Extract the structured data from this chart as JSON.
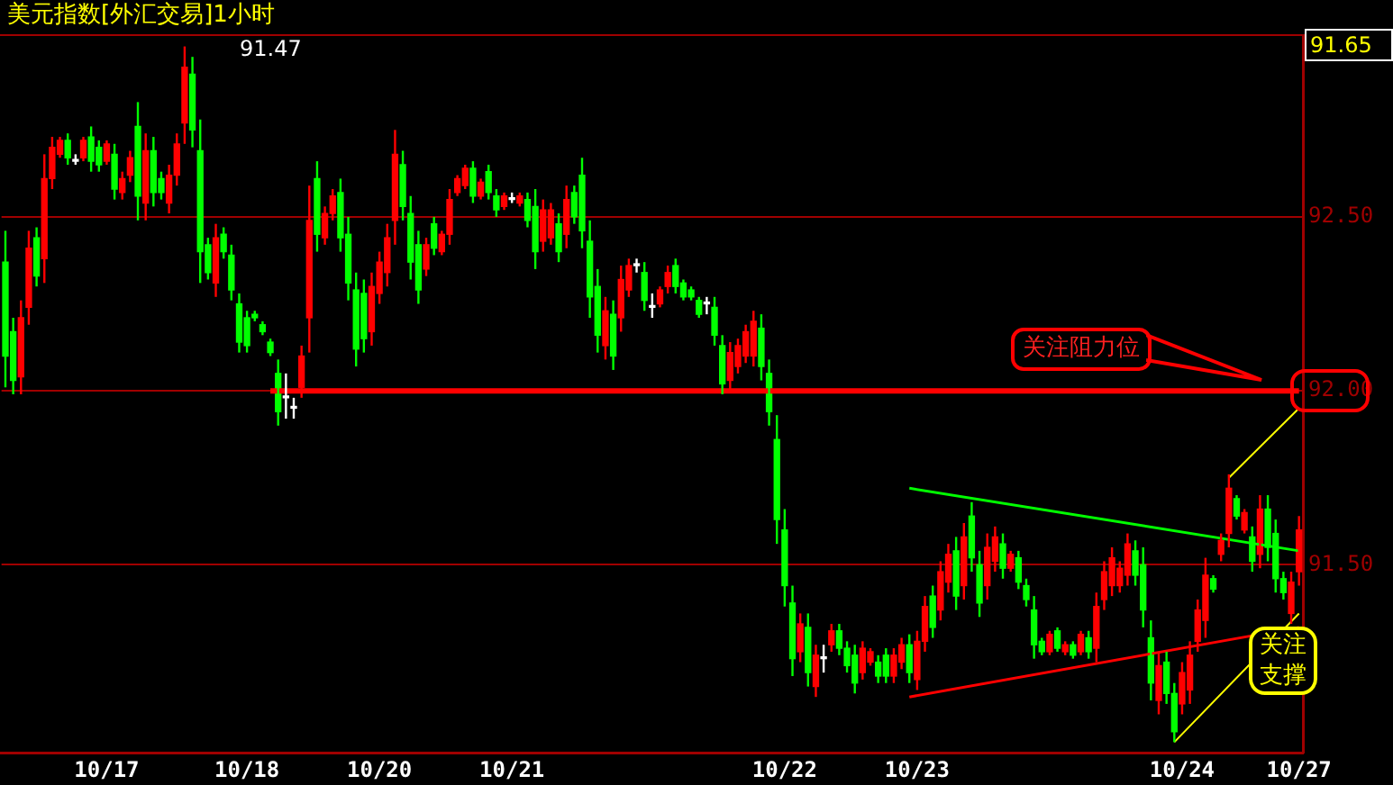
{
  "chart_data": {
    "type": "candlestick",
    "title": "美元指数[外汇交易]1小时",
    "categories": [
      null,
      null,
      null,
      null,
      null,
      null,
      null,
      null,
      null,
      null,
      null,
      null,
      null,
      "10/17",
      null,
      null,
      null,
      null,
      null,
      null,
      null,
      null,
      null,
      null,
      null,
      null,
      null,
      null,
      null,
      null,
      null,
      "10/18",
      null,
      null,
      null,
      null,
      null,
      null,
      null,
      null,
      null,
      null,
      null,
      null,
      null,
      null,
      null,
      null,
      "10/20",
      null,
      null,
      null,
      null,
      null,
      null,
      null,
      null,
      null,
      null,
      null,
      null,
      null,
      null,
      null,
      null,
      "10/21",
      null,
      null,
      null,
      null,
      null,
      null,
      null,
      null,
      null,
      null,
      null,
      null,
      null,
      null,
      null,
      null,
      null,
      null,
      null,
      null,
      null,
      null,
      null,
      null,
      null,
      null,
      null,
      null,
      null,
      null,
      null,
      null,
      null,
      null,
      "10/22",
      null,
      null,
      null,
      null,
      null,
      null,
      null,
      null,
      null,
      null,
      null,
      null,
      null,
      null,
      null,
      null,
      "10/23",
      null,
      null,
      null,
      null,
      null,
      null,
      null,
      null,
      null,
      null,
      null,
      null,
      null,
      null,
      null,
      null,
      null,
      null,
      null,
      null,
      null,
      null,
      null,
      null,
      null,
      null,
      null,
      null,
      null,
      null,
      null,
      null,
      null,
      "10/24",
      null,
      null,
      null,
      null,
      null,
      null,
      null,
      null,
      null,
      null,
      null,
      null,
      null,
      null,
      "10/27"
    ],
    "ohlc": [
      [
        92.37,
        92.46,
        92.01,
        92.1
      ],
      [
        92.17,
        92.21,
        91.99,
        92.03
      ],
      [
        92.04,
        92.26,
        91.99,
        92.21
      ],
      [
        92.24,
        92.46,
        92.19,
        92.41
      ],
      [
        92.44,
        92.47,
        92.3,
        92.33
      ],
      [
        92.38,
        92.68,
        92.31,
        92.61
      ],
      [
        92.61,
        92.73,
        92.58,
        92.7
      ],
      [
        92.68,
        92.73,
        92.67,
        92.72
      ],
      [
        92.72,
        92.74,
        92.65,
        92.67
      ],
      [
        92.66,
        92.68,
        92.65,
        92.66
      ],
      [
        92.67,
        92.73,
        92.66,
        92.72
      ],
      [
        92.73,
        92.76,
        92.63,
        92.66
      ],
      [
        92.7,
        92.72,
        92.63,
        92.65
      ],
      [
        92.66,
        92.72,
        92.65,
        92.71
      ],
      [
        92.68,
        92.71,
        92.55,
        92.58
      ],
      [
        92.57,
        92.63,
        92.55,
        92.61
      ],
      [
        92.62,
        92.69,
        92.6,
        92.67
      ],
      [
        92.76,
        92.83,
        92.49,
        92.56
      ],
      [
        92.54,
        92.74,
        92.49,
        92.69
      ],
      [
        92.69,
        92.73,
        92.53,
        92.57
      ],
      [
        92.61,
        92.63,
        92.55,
        92.57
      ],
      [
        92.54,
        92.65,
        92.51,
        92.62
      ],
      [
        92.62,
        92.74,
        92.59,
        92.71
      ],
      [
        92.77,
        92.99,
        92.71,
        92.93
      ],
      [
        92.91,
        92.96,
        92.7,
        92.75
      ],
      [
        92.69,
        92.78,
        92.31,
        92.4
      ],
      [
        92.42,
        92.44,
        92.32,
        92.34
      ],
      [
        92.31,
        92.48,
        92.27,
        92.44
      ],
      [
        92.45,
        92.47,
        92.38,
        92.4
      ],
      [
        92.39,
        92.42,
        92.26,
        92.29
      ],
      [
        92.25,
        92.28,
        92.11,
        92.14
      ],
      [
        92.21,
        92.23,
        92.11,
        92.13
      ],
      [
        92.22,
        92.23,
        92.2,
        92.21
      ],
      [
        92.19,
        92.2,
        92.16,
        92.17
      ],
      [
        92.14,
        92.15,
        92.1,
        92.11
      ],
      [
        92.05,
        92.09,
        91.9,
        91.94
      ],
      [
        91.98,
        92.05,
        91.92,
        91.98
      ],
      [
        91.95,
        91.98,
        91.92,
        91.95
      ],
      [
        92.01,
        92.13,
        91.98,
        92.1
      ],
      [
        92.21,
        92.59,
        92.11,
        92.49
      ],
      [
        92.61,
        92.66,
        92.4,
        92.45
      ],
      [
        92.44,
        92.53,
        92.42,
        92.51
      ],
      [
        92.51,
        92.58,
        92.49,
        92.56
      ],
      [
        92.57,
        92.61,
        92.4,
        92.44
      ],
      [
        92.45,
        92.5,
        92.26,
        92.31
      ],
      [
        92.29,
        92.34,
        92.07,
        92.12
      ],
      [
        92.28,
        92.32,
        92.11,
        92.15
      ],
      [
        92.17,
        92.34,
        92.13,
        92.3
      ],
      [
        92.28,
        92.4,
        92.25,
        92.37
      ],
      [
        92.34,
        92.48,
        92.3,
        92.44
      ],
      [
        92.49,
        92.75,
        92.42,
        92.68
      ],
      [
        92.65,
        92.69,
        92.49,
        92.53
      ],
      [
        92.51,
        92.56,
        92.32,
        92.37
      ],
      [
        92.42,
        92.46,
        92.25,
        92.29
      ],
      [
        92.35,
        92.44,
        92.33,
        92.42
      ],
      [
        92.48,
        92.5,
        92.39,
        92.41
      ],
      [
        92.4,
        92.46,
        92.39,
        92.45
      ],
      [
        92.45,
        92.58,
        92.42,
        92.55
      ],
      [
        92.57,
        92.62,
        92.56,
        92.61
      ],
      [
        92.59,
        92.65,
        92.58,
        92.64
      ],
      [
        92.64,
        92.66,
        92.54,
        92.56
      ],
      [
        92.56,
        92.61,
        92.55,
        92.6
      ],
      [
        92.63,
        92.65,
        92.55,
        92.57
      ],
      [
        92.56,
        92.58,
        92.5,
        92.52
      ],
      [
        92.53,
        92.57,
        92.52,
        92.56
      ],
      [
        92.55,
        92.57,
        92.54,
        92.55
      ],
      [
        92.54,
        92.57,
        92.53,
        92.56
      ],
      [
        92.55,
        92.57,
        92.47,
        92.49
      ],
      [
        92.53,
        92.58,
        92.35,
        92.4
      ],
      [
        92.43,
        92.55,
        92.4,
        92.52
      ],
      [
        92.44,
        92.54,
        92.42,
        92.52
      ],
      [
        92.48,
        92.51,
        92.37,
        92.4
      ],
      [
        92.45,
        92.59,
        92.41,
        92.55
      ],
      [
        92.57,
        92.59,
        92.48,
        92.5
      ],
      [
        92.62,
        92.67,
        92.41,
        92.46
      ],
      [
        92.43,
        92.49,
        92.21,
        92.27
      ],
      [
        92.3,
        92.35,
        92.11,
        92.16
      ],
      [
        92.13,
        92.27,
        92.09,
        92.23
      ],
      [
        92.22,
        92.26,
        92.06,
        92.1
      ],
      [
        92.21,
        92.36,
        92.17,
        92.32
      ],
      [
        92.29,
        92.38,
        92.27,
        92.36
      ],
      [
        92.36,
        92.38,
        92.34,
        92.36
      ],
      [
        92.34,
        92.37,
        92.23,
        92.26
      ],
      [
        92.24,
        92.28,
        92.21,
        92.24
      ],
      [
        92.25,
        92.3,
        92.24,
        92.29
      ],
      [
        92.3,
        92.36,
        92.28,
        92.34
      ],
      [
        92.36,
        92.38,
        92.28,
        92.3
      ],
      [
        92.31,
        92.32,
        92.26,
        92.27
      ],
      [
        92.29,
        92.3,
        92.26,
        92.27
      ],
      [
        92.26,
        92.27,
        92.21,
        92.22
      ],
      [
        92.25,
        92.27,
        92.22,
        92.25
      ],
      [
        92.24,
        92.27,
        92.13,
        92.16
      ],
      [
        92.13,
        92.16,
        91.99,
        92.02
      ],
      [
        92.03,
        92.14,
        92.0,
        92.11
      ],
      [
        92.07,
        92.15,
        92.05,
        92.13
      ],
      [
        92.1,
        92.19,
        92.08,
        92.17
      ],
      [
        92.1,
        92.23,
        92.07,
        92.2
      ],
      [
        92.18,
        92.22,
        92.03,
        92.07
      ],
      [
        92.05,
        92.09,
        91.9,
        91.94
      ],
      [
        91.86,
        91.93,
        91.56,
        91.63
      ],
      [
        91.6,
        91.66,
        91.38,
        91.44
      ],
      [
        91.39,
        91.44,
        91.18,
        91.23
      ],
      [
        91.25,
        91.36,
        91.22,
        91.33
      ],
      [
        91.32,
        91.36,
        91.15,
        91.19
      ],
      [
        91.15,
        91.27,
        91.12,
        91.24
      ],
      [
        91.23,
        91.27,
        91.19,
        91.23
      ],
      [
        91.27,
        91.33,
        91.25,
        91.31
      ],
      [
        91.31,
        91.33,
        91.24,
        91.26
      ],
      [
        91.26,
        91.28,
        91.19,
        91.21
      ],
      [
        91.24,
        91.27,
        91.13,
        91.16
      ],
      [
        91.19,
        91.28,
        91.17,
        91.26
      ],
      [
        91.22,
        91.26,
        91.21,
        91.25
      ],
      [
        91.22,
        91.24,
        91.16,
        91.18
      ],
      [
        91.24,
        91.26,
        91.16,
        91.18
      ],
      [
        91.18,
        91.26,
        91.16,
        91.24
      ],
      [
        91.22,
        91.29,
        91.2,
        91.27
      ],
      [
        91.27,
        91.3,
        91.16,
        91.19
      ],
      [
        91.17,
        91.31,
        91.14,
        91.28
      ],
      [
        91.28,
        91.41,
        91.25,
        91.38
      ],
      [
        91.41,
        91.44,
        91.29,
        91.32
      ],
      [
        91.37,
        91.51,
        91.34,
        91.48
      ],
      [
        91.45,
        91.56,
        91.42,
        91.53
      ],
      [
        91.54,
        91.58,
        91.37,
        91.41
      ],
      [
        91.44,
        91.62,
        91.4,
        91.58
      ],
      [
        91.64,
        91.68,
        91.48,
        91.52
      ],
      [
        91.5,
        91.54,
        91.35,
        91.39
      ],
      [
        91.44,
        91.59,
        91.4,
        91.55
      ],
      [
        91.51,
        91.61,
        91.48,
        91.58
      ],
      [
        91.56,
        91.59,
        91.46,
        91.49
      ],
      [
        91.49,
        91.54,
        91.48,
        91.53
      ],
      [
        91.52,
        91.54,
        91.43,
        91.45
      ],
      [
        91.44,
        91.46,
        91.38,
        91.4
      ],
      [
        91.37,
        91.41,
        91.23,
        91.27
      ],
      [
        91.28,
        91.29,
        91.24,
        91.25
      ],
      [
        91.25,
        91.31,
        91.24,
        91.3
      ],
      [
        91.31,
        91.32,
        91.25,
        91.26
      ],
      [
        91.25,
        91.28,
        91.24,
        91.27
      ],
      [
        91.27,
        91.28,
        91.23,
        91.24
      ],
      [
        91.25,
        91.31,
        91.24,
        91.3
      ],
      [
        91.29,
        91.31,
        91.23,
        91.25
      ],
      [
        91.26,
        91.42,
        91.22,
        91.38
      ],
      [
        91.4,
        91.51,
        91.37,
        91.48
      ],
      [
        91.44,
        91.55,
        91.41,
        91.52
      ],
      [
        91.44,
        91.51,
        91.42,
        91.49
      ],
      [
        91.47,
        91.59,
        91.44,
        91.56
      ],
      [
        91.54,
        91.57,
        91.44,
        91.47
      ],
      [
        91.5,
        91.55,
        91.32,
        91.37
      ],
      [
        91.29,
        91.34,
        91.11,
        91.16
      ],
      [
        91.11,
        91.25,
        91.07,
        91.21
      ],
      [
        91.22,
        91.25,
        91.1,
        91.13
      ],
      [
        91.13,
        91.16,
        90.99,
        91.02
      ],
      [
        91.1,
        91.22,
        91.07,
        91.19
      ],
      [
        91.14,
        91.28,
        91.1,
        91.24
      ],
      [
        91.28,
        91.4,
        91.25,
        91.37
      ],
      [
        91.34,
        91.52,
        91.29,
        91.47
      ],
      [
        91.46,
        91.47,
        91.42,
        91.43
      ],
      [
        91.53,
        91.59,
        91.51,
        91.57
      ],
      [
        91.59,
        91.76,
        91.55,
        91.72
      ],
      [
        91.69,
        91.7,
        91.63,
        91.64
      ],
      [
        91.6,
        91.66,
        91.59,
        91.65
      ],
      [
        91.58,
        91.61,
        91.48,
        91.51
      ],
      [
        91.53,
        91.7,
        91.49,
        91.66
      ],
      [
        91.66,
        91.7,
        91.51,
        91.55
      ],
      [
        91.59,
        91.63,
        91.42,
        91.46
      ],
      [
        91.46,
        91.48,
        91.4,
        91.42
      ],
      [
        91.36,
        91.48,
        91.33,
        91.45
      ],
      [
        91.48,
        91.64,
        91.44,
        91.6
      ]
    ],
    "colors": [
      "#00ff00",
      "#00ff00",
      "#ff0000",
      "#ff0000",
      "#00ff00",
      "#ff0000",
      "#ff0000",
      "#ff0000",
      "#00ff00",
      "#ffffff",
      "#ff0000",
      "#00ff00",
      "#00ff00",
      "#ff0000",
      "#00ff00",
      "#ff0000",
      "#ff0000",
      "#00ff00",
      "#ff0000",
      "#00ff00",
      "#00ff00",
      "#ff0000",
      "#ff0000",
      "#ff0000",
      "#00ff00",
      "#00ff00",
      "#00ff00",
      "#ff0000",
      "#00ff00",
      "#00ff00",
      "#00ff00",
      "#00ff00",
      "#00ff00",
      "#00ff00",
      "#00ff00",
      "#00ff00",
      "#ffffff",
      "#ffffff",
      "#ff0000",
      "#ff0000",
      "#00ff00",
      "#ff0000",
      "#ff0000",
      "#00ff00",
      "#00ff00",
      "#00ff00",
      "#00ff00",
      "#ff0000",
      "#ff0000",
      "#ff0000",
      "#ff0000",
      "#00ff00",
      "#00ff00",
      "#00ff00",
      "#ff0000",
      "#00ff00",
      "#ff0000",
      "#ff0000",
      "#ff0000",
      "#ff0000",
      "#00ff00",
      "#ff0000",
      "#00ff00",
      "#00ff00",
      "#ff0000",
      "#ffffff",
      "#ff0000",
      "#00ff00",
      "#00ff00",
      "#ff0000",
      "#ff0000",
      "#00ff00",
      "#ff0000",
      "#00ff00",
      "#00ff00",
      "#00ff00",
      "#00ff00",
      "#ff0000",
      "#00ff00",
      "#ff0000",
      "#ff0000",
      "#ffffff",
      "#00ff00",
      "#ffffff",
      "#ff0000",
      "#ff0000",
      "#00ff00",
      "#00ff00",
      "#00ff00",
      "#00ff00",
      "#ffffff",
      "#00ff00",
      "#00ff00",
      "#ff0000",
      "#ff0000",
      "#ff0000",
      "#ff0000",
      "#00ff00",
      "#00ff00",
      "#00ff00",
      "#00ff00",
      "#00ff00",
      "#ff0000",
      "#00ff00",
      "#ff0000",
      "#ffffff",
      "#ff0000",
      "#00ff00",
      "#00ff00",
      "#00ff00",
      "#ff0000",
      "#ff0000",
      "#00ff00",
      "#00ff00",
      "#ff0000",
      "#ff0000",
      "#00ff00",
      "#ff0000",
      "#ff0000",
      "#00ff00",
      "#ff0000",
      "#ff0000",
      "#00ff00",
      "#ff0000",
      "#00ff00",
      "#00ff00",
      "#ff0000",
      "#ff0000",
      "#00ff00",
      "#ff0000",
      "#00ff00",
      "#00ff00",
      "#00ff00",
      "#00ff00",
      "#ff0000",
      "#00ff00",
      "#ff0000",
      "#00ff00",
      "#ff0000",
      "#00ff00",
      "#ff0000",
      "#ff0000",
      "#ff0000",
      "#ff0000",
      "#ff0000",
      "#00ff00",
      "#00ff00",
      "#00ff00",
      "#ff0000",
      "#00ff00",
      "#00ff00",
      "#ff0000",
      "#ff0000",
      "#ff0000",
      "#ff0000",
      "#00ff00",
      "#ff0000",
      "#ff0000",
      "#00ff00",
      "#ff0000",
      "#00ff00",
      "#ff0000",
      "#00ff00",
      "#00ff00",
      "#00ff00",
      "#ff0000",
      "#ff0000"
    ],
    "series": [
      {
        "type": "line",
        "color": "#ff0000",
        "values": [
          null,
          null,
          null,
          null,
          null,
          null,
          null,
          null,
          null,
          null,
          null,
          null,
          null,
          null,
          null,
          null,
          null,
          null,
          null,
          null,
          null,
          null,
          null,
          null,
          null,
          null,
          null,
          null,
          null,
          null,
          null,
          null,
          null,
          null,
          92.0,
          null,
          null,
          null,
          null,
          null,
          null,
          null,
          null,
          null,
          null,
          null,
          null,
          null,
          null,
          null,
          null,
          null,
          null,
          null,
          null,
          null,
          null,
          null,
          null,
          null,
          null,
          null,
          null,
          null,
          null,
          null,
          null,
          null,
          null,
          null,
          null,
          null,
          null,
          null,
          null,
          null,
          null,
          null,
          null,
          null,
          null,
          null,
          null,
          null,
          null,
          null,
          null,
          null,
          null,
          null,
          null,
          null,
          null,
          null,
          null,
          null,
          null,
          null,
          null,
          null,
          null,
          null,
          null,
          null,
          null,
          null,
          null,
          null,
          null,
          null,
          null,
          null,
          null,
          null,
          null,
          null,
          null,
          null,
          null,
          null,
          null,
          null,
          null,
          null,
          null,
          null,
          null,
          null,
          null,
          null,
          null,
          null,
          null,
          null,
          null,
          null,
          null,
          null,
          null,
          null,
          null,
          null,
          null,
          null,
          null,
          null,
          null,
          null,
          null,
          null,
          null,
          null,
          null,
          null,
          null,
          null,
          null,
          null,
          null,
          null,
          null,
          null,
          null,
          null,
          null,
          null,
          92.0
        ]
      },
      {
        "type": "line",
        "color": "#00ff00",
        "values": [
          null,
          null,
          null,
          null,
          null,
          null,
          null,
          null,
          null,
          null,
          null,
          null,
          null,
          null,
          null,
          null,
          null,
          null,
          null,
          null,
          null,
          null,
          null,
          null,
          null,
          null,
          null,
          null,
          null,
          null,
          null,
          null,
          null,
          null,
          null,
          null,
          null,
          null,
          null,
          null,
          null,
          null,
          null,
          null,
          null,
          null,
          null,
          null,
          null,
          null,
          null,
          null,
          null,
          null,
          null,
          null,
          null,
          null,
          null,
          null,
          null,
          null,
          null,
          null,
          null,
          null,
          null,
          null,
          null,
          null,
          null,
          null,
          null,
          null,
          null,
          null,
          null,
          null,
          null,
          null,
          null,
          null,
          null,
          null,
          null,
          null,
          null,
          null,
          null,
          null,
          null,
          null,
          null,
          null,
          null,
          null,
          null,
          null,
          null,
          null,
          null,
          null,
          null,
          null,
          null,
          null,
          null,
          null,
          null,
          null,
          null,
          null,
          null,
          null,
          null,
          null,
          91.72,
          null,
          null,
          null,
          null,
          null,
          null,
          null,
          null,
          null,
          null,
          null,
          null,
          null,
          null,
          null,
          null,
          null,
          null,
          null,
          null,
          null,
          null,
          null,
          null,
          null,
          null,
          null,
          null,
          null,
          null,
          null,
          null,
          null,
          null,
          null,
          null,
          null,
          null,
          null,
          null,
          null,
          null,
          null,
          null,
          null,
          null,
          null,
          null,
          null,
          91.54
        ]
      },
      {
        "type": "line",
        "color": "#ff0000",
        "values": [
          null,
          null,
          null,
          null,
          null,
          null,
          null,
          null,
          null,
          null,
          null,
          null,
          null,
          null,
          null,
          null,
          null,
          null,
          null,
          null,
          null,
          null,
          null,
          null,
          null,
          null,
          null,
          null,
          null,
          null,
          null,
          null,
          null,
          null,
          null,
          null,
          null,
          null,
          null,
          null,
          null,
          null,
          null,
          null,
          null,
          null,
          null,
          null,
          null,
          null,
          null,
          null,
          null,
          null,
          null,
          null,
          null,
          null,
          null,
          null,
          null,
          null,
          null,
          null,
          null,
          null,
          null,
          null,
          null,
          null,
          null,
          null,
          null,
          null,
          null,
          null,
          null,
          null,
          null,
          null,
          null,
          null,
          null,
          null,
          null,
          null,
          null,
          null,
          null,
          null,
          null,
          null,
          null,
          null,
          null,
          null,
          null,
          null,
          null,
          null,
          null,
          null,
          null,
          null,
          null,
          null,
          null,
          null,
          null,
          null,
          null,
          null,
          null,
          null,
          null,
          null,
          91.12,
          null,
          null,
          null,
          null,
          null,
          null,
          null,
          null,
          null,
          null,
          null,
          null,
          null,
          null,
          null,
          null,
          null,
          null,
          null,
          null,
          null,
          null,
          null,
          null,
          null,
          null,
          null,
          null,
          null,
          null,
          null,
          null,
          null,
          null,
          null,
          null,
          null,
          null,
          null,
          null,
          null,
          null,
          null,
          null,
          null,
          null,
          null,
          null,
          null,
          91.32
        ]
      },
      {
        "type": "line",
        "color": "#ffff00",
        "values": [
          null,
          null,
          null,
          null,
          null,
          null,
          null,
          null,
          null,
          null,
          null,
          null,
          null,
          null,
          null,
          null,
          null,
          null,
          null,
          null,
          null,
          null,
          null,
          null,
          null,
          null,
          null,
          null,
          null,
          null,
          null,
          null,
          null,
          null,
          null,
          null,
          null,
          null,
          null,
          null,
          null,
          null,
          null,
          null,
          null,
          null,
          null,
          null,
          null,
          null,
          null,
          null,
          null,
          null,
          null,
          null,
          null,
          null,
          null,
          null,
          null,
          null,
          null,
          null,
          null,
          null,
          null,
          null,
          null,
          null,
          null,
          null,
          null,
          null,
          null,
          null,
          null,
          null,
          null,
          null,
          null,
          null,
          null,
          null,
          null,
          null,
          null,
          null,
          null,
          null,
          null,
          null,
          null,
          null,
          null,
          null,
          null,
          null,
          null,
          null,
          null,
          null,
          null,
          null,
          null,
          null,
          null,
          null,
          null,
          null,
          null,
          null,
          null,
          null,
          null,
          null,
          null,
          null,
          null,
          null,
          null,
          null,
          null,
          null,
          null,
          null,
          null,
          null,
          null,
          null,
          null,
          null,
          null,
          null,
          null,
          null,
          null,
          null,
          null,
          null,
          null,
          null,
          null,
          null,
          null,
          null,
          null,
          null,
          null,
          null,
          90.99,
          null,
          null,
          null,
          null,
          null,
          null,
          null,
          null,
          null,
          null,
          null,
          null,
          null,
          null,
          null,
          91.36
        ]
      },
      {
        "type": "line",
        "color": "#ffff00",
        "values": [
          null,
          null,
          null,
          null,
          null,
          null,
          null,
          null,
          null,
          null,
          null,
          null,
          null,
          null,
          null,
          null,
          null,
          null,
          null,
          null,
          null,
          null,
          null,
          null,
          null,
          null,
          null,
          null,
          null,
          null,
          null,
          null,
          null,
          null,
          null,
          null,
          null,
          null,
          null,
          null,
          null,
          null,
          null,
          null,
          null,
          null,
          null,
          null,
          null,
          null,
          null,
          null,
          null,
          null,
          null,
          null,
          null,
          null,
          null,
          null,
          null,
          null,
          null,
          null,
          null,
          null,
          null,
          null,
          null,
          null,
          null,
          null,
          null,
          null,
          null,
          null,
          null,
          null,
          null,
          null,
          null,
          null,
          null,
          null,
          null,
          null,
          null,
          null,
          null,
          null,
          null,
          null,
          null,
          null,
          null,
          null,
          null,
          null,
          null,
          null,
          null,
          null,
          null,
          null,
          null,
          null,
          null,
          null,
          null,
          null,
          null,
          null,
          null,
          null,
          null,
          null,
          null,
          null,
          null,
          null,
          null,
          null,
          null,
          null,
          null,
          null,
          null,
          null,
          null,
          null,
          null,
          null,
          null,
          null,
          null,
          null,
          null,
          null,
          null,
          null,
          null,
          null,
          null,
          null,
          null,
          null,
          null,
          null,
          null,
          null,
          null,
          null,
          null,
          null,
          null,
          null,
          null,
          91.75,
          null,
          null,
          null,
          null,
          null,
          null,
          null,
          null,
          91.95
        ]
      }
    ],
    "ylim": [
      90.96,
      93.02
    ],
    "yticks": [
      {
        "value": 91.5,
        "label": "91.50"
      },
      {
        "value": 92,
        "label": "92.00"
      },
      {
        "value": 92.5,
        "label": "92.50"
      }
    ],
    "grid": "y",
    "annotations": [
      "91.47",
      "关注阻力位",
      "关注支撑",
      "91.65"
    ]
  }
}
